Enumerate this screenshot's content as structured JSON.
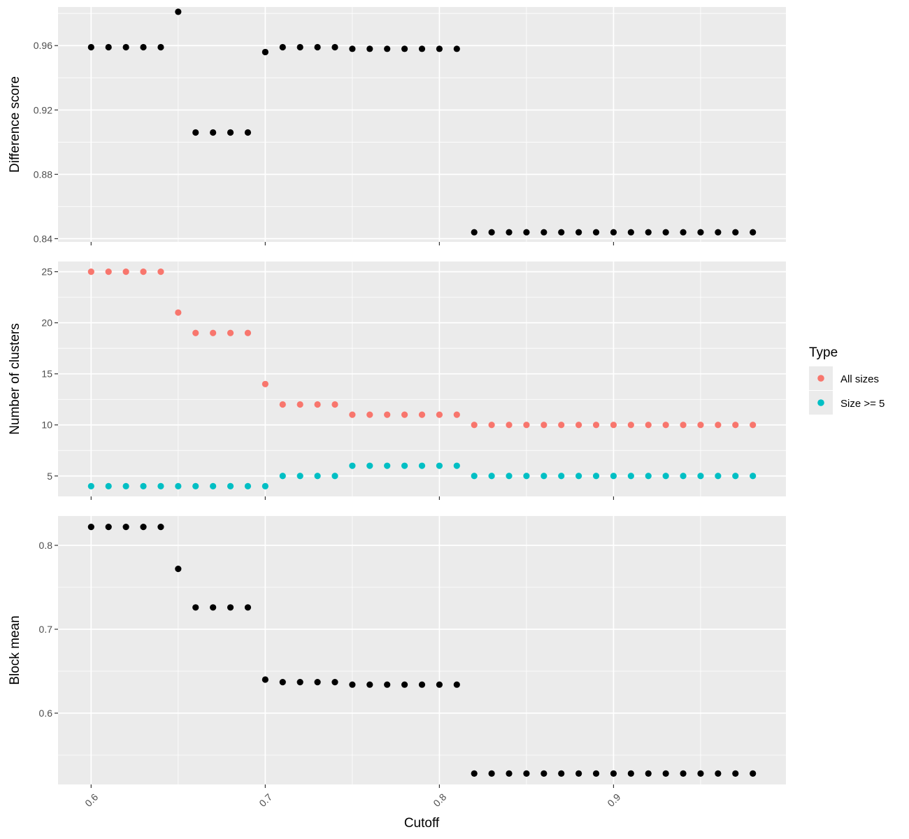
{
  "chart_data": [
    {
      "type": "scatter",
      "panel": "top",
      "ylabel": "Difference score",
      "yticks": [
        0.84,
        0.88,
        0.92,
        0.96
      ],
      "ytick_labels": [
        "0.84",
        "0.88",
        "0.92",
        "0.96"
      ],
      "ylim": [
        0.838,
        0.984
      ],
      "xlim": [
        0.581,
        0.999
      ],
      "series": [
        {
          "color": "#000000",
          "x": [
            0.6,
            0.61,
            0.62,
            0.63,
            0.64,
            0.65,
            0.66,
            0.67,
            0.68,
            0.69,
            0.7,
            0.71,
            0.72,
            0.73,
            0.74,
            0.75,
            0.76,
            0.77,
            0.78,
            0.79,
            0.8,
            0.81,
            0.82,
            0.83,
            0.84,
            0.85,
            0.86,
            0.87,
            0.88,
            0.89,
            0.9,
            0.91,
            0.92,
            0.93,
            0.94,
            0.95,
            0.96,
            0.97,
            0.98
          ],
          "y": [
            0.959,
            0.959,
            0.959,
            0.959,
            0.959,
            0.981,
            0.906,
            0.906,
            0.906,
            0.906,
            0.956,
            0.959,
            0.959,
            0.959,
            0.959,
            0.958,
            0.958,
            0.958,
            0.958,
            0.958,
            0.958,
            0.958,
            0.844,
            0.844,
            0.844,
            0.844,
            0.844,
            0.844,
            0.844,
            0.844,
            0.844,
            0.844,
            0.844,
            0.844,
            0.844,
            0.844,
            0.844,
            0.844,
            0.844
          ]
        }
      ]
    },
    {
      "type": "scatter",
      "panel": "middle",
      "ylabel": "Number of clusters",
      "yticks": [
        5,
        10,
        15,
        20,
        25
      ],
      "ytick_labels": [
        "5",
        "10",
        "15",
        "20",
        "25"
      ],
      "ylim": [
        3.0,
        26.0
      ],
      "xlim": [
        0.581,
        0.999
      ],
      "legend": {
        "title": "Type",
        "position": "right"
      },
      "series": [
        {
          "name": "All sizes",
          "color": "#F8766D",
          "x": [
            0.6,
            0.61,
            0.62,
            0.63,
            0.64,
            0.65,
            0.66,
            0.67,
            0.68,
            0.69,
            0.7,
            0.71,
            0.72,
            0.73,
            0.74,
            0.75,
            0.76,
            0.77,
            0.78,
            0.79,
            0.8,
            0.81,
            0.82,
            0.83,
            0.84,
            0.85,
            0.86,
            0.87,
            0.88,
            0.89,
            0.9,
            0.91,
            0.92,
            0.93,
            0.94,
            0.95,
            0.96,
            0.97,
            0.98
          ],
          "y": [
            25,
            25,
            25,
            25,
            25,
            21,
            19,
            19,
            19,
            19,
            14,
            12,
            12,
            12,
            12,
            11,
            11,
            11,
            11,
            11,
            11,
            11,
            10,
            10,
            10,
            10,
            10,
            10,
            10,
            10,
            10,
            10,
            10,
            10,
            10,
            10,
            10,
            10,
            10
          ]
        },
        {
          "name": "Size >= 5",
          "color": "#00BFC4",
          "x": [
            0.6,
            0.61,
            0.62,
            0.63,
            0.64,
            0.65,
            0.66,
            0.67,
            0.68,
            0.69,
            0.7,
            0.71,
            0.72,
            0.73,
            0.74,
            0.75,
            0.76,
            0.77,
            0.78,
            0.79,
            0.8,
            0.81,
            0.82,
            0.83,
            0.84,
            0.85,
            0.86,
            0.87,
            0.88,
            0.89,
            0.9,
            0.91,
            0.92,
            0.93,
            0.94,
            0.95,
            0.96,
            0.97,
            0.98
          ],
          "y": [
            4,
            4,
            4,
            4,
            4,
            4,
            4,
            4,
            4,
            4,
            4,
            5,
            5,
            5,
            5,
            6,
            6,
            6,
            6,
            6,
            6,
            6,
            5,
            5,
            5,
            5,
            5,
            5,
            5,
            5,
            5,
            5,
            5,
            5,
            5,
            5,
            5,
            5,
            5
          ]
        }
      ]
    },
    {
      "type": "scatter",
      "panel": "bottom",
      "ylabel": "Block mean",
      "xlabel": "Cutoff",
      "yticks": [
        0.6,
        0.7,
        0.8
      ],
      "ytick_labels": [
        "0.6",
        "0.7",
        "0.8"
      ],
      "ylim": [
        0.515,
        0.835
      ],
      "xlim": [
        0.581,
        0.999
      ],
      "xticks": [
        0.6,
        0.7,
        0.8,
        0.9
      ],
      "xtick_labels": [
        "0.6",
        "0.7",
        "0.8",
        "0.9"
      ],
      "series": [
        {
          "color": "#000000",
          "x": [
            0.6,
            0.61,
            0.62,
            0.63,
            0.64,
            0.65,
            0.66,
            0.67,
            0.68,
            0.69,
            0.7,
            0.71,
            0.72,
            0.73,
            0.74,
            0.75,
            0.76,
            0.77,
            0.78,
            0.79,
            0.8,
            0.81,
            0.82,
            0.83,
            0.84,
            0.85,
            0.86,
            0.87,
            0.88,
            0.89,
            0.9,
            0.91,
            0.92,
            0.93,
            0.94,
            0.95,
            0.96,
            0.97,
            0.98
          ],
          "y": [
            0.822,
            0.822,
            0.822,
            0.822,
            0.822,
            0.772,
            0.726,
            0.726,
            0.726,
            0.726,
            0.64,
            0.637,
            0.637,
            0.637,
            0.637,
            0.634,
            0.634,
            0.634,
            0.634,
            0.634,
            0.634,
            0.634,
            0.528,
            0.528,
            0.528,
            0.528,
            0.528,
            0.528,
            0.528,
            0.528,
            0.528,
            0.528,
            0.528,
            0.528,
            0.528,
            0.528,
            0.528,
            0.528,
            0.528
          ]
        }
      ]
    }
  ],
  "legend": {
    "title": "Type",
    "items": [
      {
        "label": "All sizes",
        "color": "#F8766D"
      },
      {
        "label": "Size >= 5",
        "color": "#00BFC4"
      }
    ]
  },
  "colors": {
    "panel_background": "#EBEBEB",
    "grid_major": "#FFFFFF",
    "tick_mark": "#333333",
    "tick_text": "#4D4D4D"
  }
}
